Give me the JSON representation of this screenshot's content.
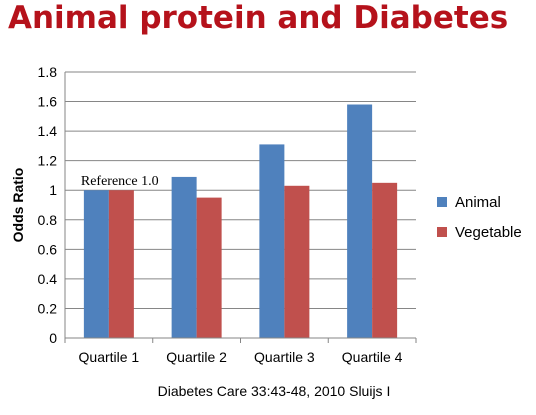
{
  "slide": {
    "title": "Animal protein and Diabetes",
    "citation": "Diabetes Care 33:43-48, 2010 Sluijs I"
  },
  "chart_data": {
    "type": "bar",
    "categories": [
      "Quartile 1",
      "Quartile 2",
      "Quartile 3",
      "Quartile 4"
    ],
    "series": [
      {
        "name": "Animal",
        "values": [
          1.0,
          1.09,
          1.31,
          1.58
        ],
        "color": "#4f81bd"
      },
      {
        "name": "Vegetable",
        "values": [
          1.0,
          0.95,
          1.03,
          1.05
        ],
        "color": "#c0504d"
      }
    ],
    "title": "",
    "xlabel": "",
    "ylabel": "Odds Ratio",
    "ylim": [
      0,
      1.8
    ],
    "yticks": [
      "0",
      "0.2",
      "0.4",
      "0.6",
      "0.8",
      "1",
      "1.2",
      "1.4",
      "1.6",
      "1.8"
    ],
    "grid": true,
    "legend_position": "right",
    "annotations": [
      {
        "text": "Reference 1.0",
        "category": "Quartile 1",
        "value": 1.0
      }
    ]
  }
}
